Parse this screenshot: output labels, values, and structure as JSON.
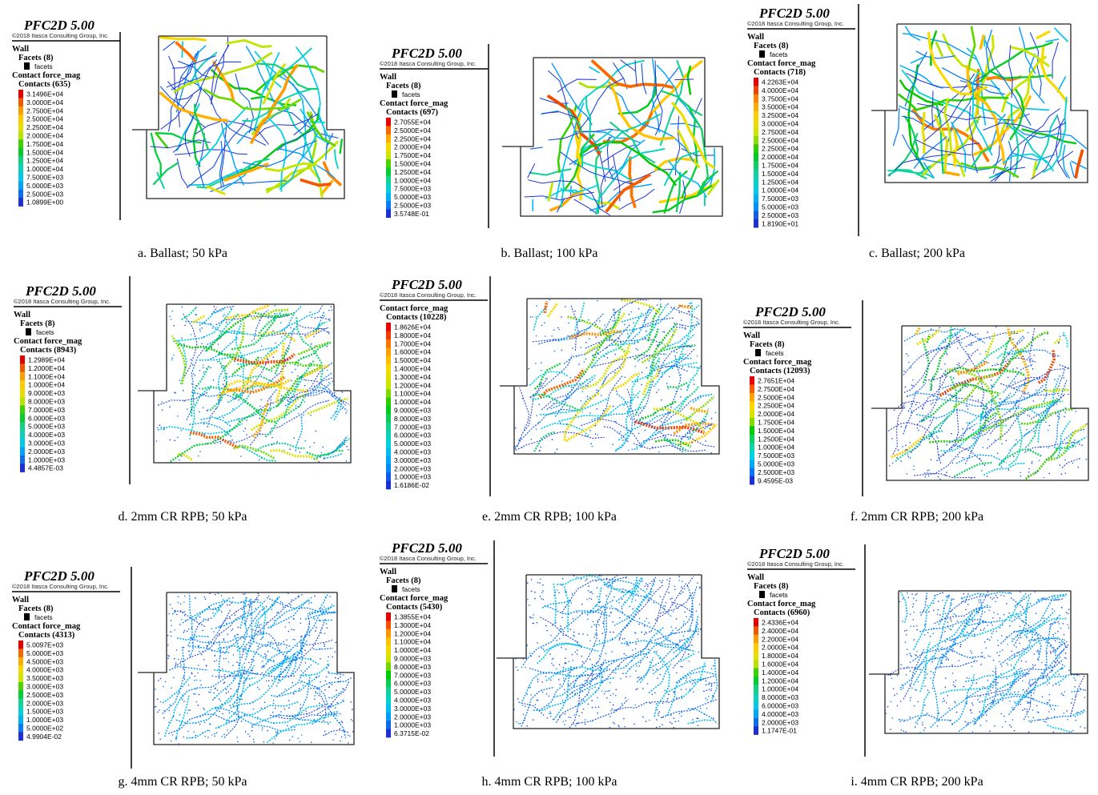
{
  "panels": [
    {
      "legend": {
        "title": "PFC2D 5.00",
        "copyright": "©2018 Itasca Consulting Group, Inc.",
        "wall": "Wall",
        "facets": "Facets (8)",
        "facet_item": "facets",
        "quantity": "Contact force_mag",
        "contacts": "Contacts (635)",
        "labels": [
          "3.1496E+04",
          "3.0000E+04",
          "2.7500E+04",
          "2.5000E+04",
          "2.2500E+04",
          "2.0000E+04",
          "1.7500E+04",
          "1.5000E+04",
          "1.2500E+04",
          "1.0000E+04",
          "7.5000E+03",
          "5.0000E+03",
          "2.5000E+03",
          "1.0899E+00"
        ]
      },
      "caption": "a. Ballast; 50 kPa"
    },
    {
      "legend": {
        "title": "PFC2D 5.00",
        "copyright": "©2018 Itasca Consulting Group, Inc.",
        "wall": "Wall",
        "facets": "Facets (8)",
        "facet_item": "facets",
        "quantity": "Contact force_mag",
        "contacts": "Contacts (697)",
        "labels": [
          "2.7055E+04",
          "2.5000E+04",
          "2.2500E+04",
          "2.0000E+04",
          "1.7500E+04",
          "1.5000E+04",
          "1.2500E+04",
          "1.0000E+04",
          "7.5000E+03",
          "5.0000E+03",
          "2.5000E+03",
          "3.5748E-01"
        ]
      },
      "caption": "b. Ballast; 100 kPa"
    },
    {
      "legend": {
        "title": "PFC2D 5.00",
        "copyright": "©2018 Itasca Consulting Group, Inc.",
        "wall": "Wall",
        "facets": "Facets (8)",
        "facet_item": "facets",
        "quantity": "Contact force_mag",
        "contacts": "Contacts (718)",
        "labels": [
          "4.2263E+04",
          "4.0000E+04",
          "3.7500E+04",
          "3.5000E+04",
          "3.2500E+04",
          "3.0000E+04",
          "2.7500E+04",
          "2.5000E+04",
          "2.2500E+04",
          "2.0000E+04",
          "1.7500E+04",
          "1.5000E+04",
          "1.2500E+04",
          "1.0000E+04",
          "7.5000E+03",
          "5.0000E+03",
          "2.5000E+03",
          "1.8190E+01"
        ]
      },
      "caption": "c. Ballast; 200 kPa"
    },
    {
      "legend": {
        "title": "PFC2D 5.00",
        "copyright": "©2018 Itasca Consulting Group, Inc.",
        "wall": "Wall",
        "facets": "Facets (8)",
        "facet_item": "facets",
        "quantity": "Contact force_mag",
        "contacts": "Contacts (8943)",
        "labels": [
          "1.2989E+04",
          "1.2000E+04",
          "1.1000E+04",
          "1.0000E+04",
          "9.0000E+03",
          "8.0000E+03",
          "7.0000E+03",
          "6.0000E+03",
          "5.0000E+03",
          "4.0000E+03",
          "3.0000E+03",
          "2.0000E+03",
          "1.0000E+03",
          "4.4857E-03"
        ]
      },
      "caption": "d. 2mm CR RPB; 50 kPa"
    },
    {
      "legend": {
        "title": "PFC2D 5.00",
        "copyright": "©2018 Itasca Consulting Group, Inc.",
        "quantity": "Contact force_mag",
        "contacts": "Contacts (10228)",
        "labels": [
          "1.8626E+04",
          "1.8000E+04",
          "1.7000E+04",
          "1.6000E+04",
          "1.5000E+04",
          "1.4000E+04",
          "1.3000E+04",
          "1.2000E+04",
          "1.1000E+04",
          "1.0000E+04",
          "9.0000E+03",
          "8.0000E+03",
          "7.0000E+03",
          "6.0000E+03",
          "5.0000E+03",
          "4.0000E+03",
          "3.0000E+03",
          "2.0000E+03",
          "1.0000E+03",
          "1.6186E-02"
        ]
      },
      "caption": "e. 2mm CR RPB; 100 kPa"
    },
    {
      "legend": {
        "title": "PFC2D 5.00",
        "copyright": "©2018 Itasca Consulting Group, Inc.",
        "wall": "Wall",
        "facets": "Facets (8)",
        "facet_item": "facets",
        "quantity": "Contact force_mag",
        "contacts": "Contacts (12093)",
        "labels": [
          "2.7651E+04",
          "2.7500E+04",
          "2.5000E+04",
          "2.2500E+04",
          "2.0000E+04",
          "1.7500E+04",
          "1.5000E+04",
          "1.2500E+04",
          "1.0000E+04",
          "7.5000E+03",
          "5.0000E+03",
          "2.5000E+03",
          "9.4595E-03"
        ]
      },
      "caption": "f. 2mm CR RPB; 200 kPa"
    },
    {
      "legend": {
        "title": "PFC2D 5.00",
        "copyright": "©2018 Itasca Consulting Group, Inc.",
        "wall": "Wall",
        "facets": "Facets (8)",
        "facet_item": "facets",
        "quantity": "Contact force_mag",
        "contacts": "Contacts (4313)",
        "labels": [
          "5.0097E+03",
          "5.0000E+03",
          "4.5000E+03",
          "4.0000E+03",
          "3.5000E+03",
          "3.0000E+03",
          "2.5000E+03",
          "2.0000E+03",
          "1.5000E+03",
          "1.0000E+03",
          "5.0000E+02",
          "4.9904E-02"
        ]
      },
      "caption": "g. 4mm CR RPB; 50 kPa"
    },
    {
      "legend": {
        "title": "PFC2D 5.00",
        "copyright": "©2018 Itasca Consulting Group, Inc.",
        "wall": "Wall",
        "facets": "Facets (8)",
        "facet_item": "facets",
        "quantity": "Contact force_mag",
        "contacts": "Contacts (5430)",
        "labels": [
          "1.3855E+04",
          "1.3000E+04",
          "1.2000E+04",
          "1.1000E+04",
          "1.0000E+04",
          "9.0000E+03",
          "8.0000E+03",
          "7.0000E+03",
          "6.0000E+03",
          "5.0000E+03",
          "4.0000E+03",
          "3.0000E+03",
          "2.0000E+03",
          "1.0000E+03",
          "6.3715E-02"
        ]
      },
      "caption": "h. 4mm CR RPB; 100 kPa"
    },
    {
      "legend": {
        "title": "PFC2D 5.00",
        "copyright": "©2018 Itasca Consulting Group, Inc.",
        "wall": "Wall",
        "facets": "Facets (8)",
        "facet_item": "facets",
        "quantity": "Contact force_mag",
        "contacts": "Contacts (6960)",
        "labels": [
          "2.4336E+04",
          "2.4000E+04",
          "2.2000E+04",
          "2.0000E+04",
          "1.8000E+04",
          "1.6000E+04",
          "1.4000E+04",
          "1.2000E+04",
          "1.0000E+04",
          "8.0000E+03",
          "6.0000E+03",
          "4.0000E+03",
          "2.0000E+03",
          "1.1747E-01"
        ]
      },
      "caption": "i. 4mm CR RPB; 200 kPa"
    }
  ]
}
